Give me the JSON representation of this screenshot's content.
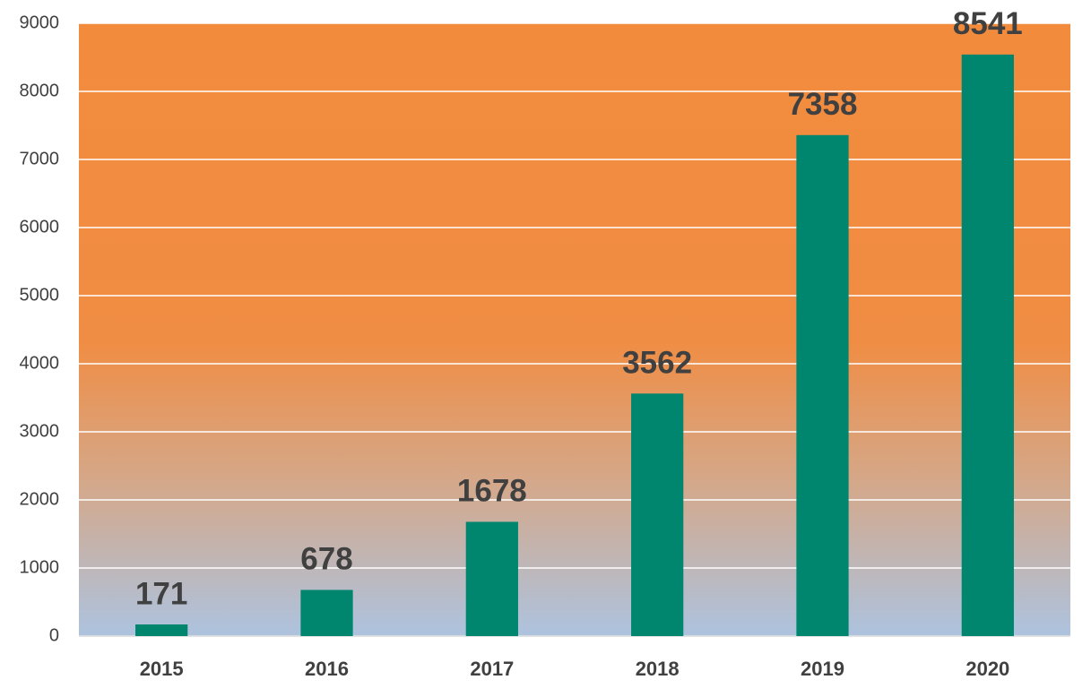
{
  "chart_data": {
    "type": "bar",
    "categories": [
      "2015",
      "2016",
      "2017",
      "2018",
      "2019",
      "2020"
    ],
    "values": [
      171,
      678,
      1678,
      3562,
      7358,
      8541
    ],
    "color": "#00866f",
    "ylim": [
      0,
      9000
    ],
    "yticks": [
      0,
      1000,
      2000,
      3000,
      4000,
      5000,
      6000,
      7000,
      8000,
      9000
    ],
    "grid": true
  }
}
